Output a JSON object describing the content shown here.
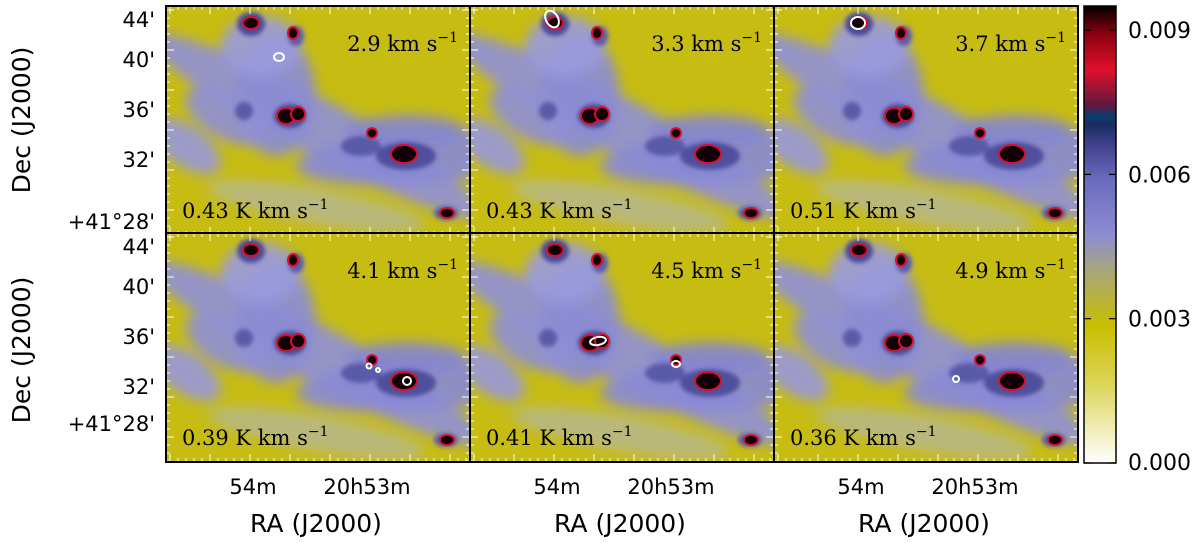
{
  "chart_data": {
    "type": "heatmap",
    "description_note": "",
    "panels": [
      {
        "velocity": "2.9",
        "velocity_unit": "km s",
        "velocity_exp": "−1",
        "level": "0.43",
        "level_unit": "K km s",
        "level_exp": "−1"
      },
      {
        "velocity": "3.3",
        "velocity_unit": "km s",
        "velocity_exp": "−1",
        "level": "0.43",
        "level_unit": "K km s",
        "level_exp": "−1"
      },
      {
        "velocity": "3.7",
        "velocity_unit": "km s",
        "velocity_exp": "−1",
        "level": "0.51",
        "level_unit": "K km s",
        "level_exp": "−1"
      },
      {
        "velocity": "4.1",
        "velocity_unit": "km s",
        "velocity_exp": "−1",
        "level": "0.39",
        "level_unit": "K km s",
        "level_exp": "−1"
      },
      {
        "velocity": "4.5",
        "velocity_unit": "km s",
        "velocity_exp": "−1",
        "level": "0.41",
        "level_unit": "K km s",
        "level_exp": "−1"
      },
      {
        "velocity": "4.9",
        "velocity_unit": "km s",
        "velocity_exp": "−1",
        "level": "0.36",
        "level_unit": "K km s",
        "level_exp": "−1"
      }
    ],
    "xlabel": "RA (J2000)",
    "ylabel": "Dec (J2000)",
    "xticks": [
      "54m",
      "20h53m"
    ],
    "yticks": [
      "44'",
      "40'",
      "36'",
      "32'",
      "+41°28'"
    ],
    "colorbar": {
      "ticks": [
        "0.009",
        "0.006",
        "0.003",
        "0.000"
      ],
      "range": [
        0.0,
        0.0095
      ],
      "tick_values": [
        0.009,
        0.006,
        0.003,
        0.0
      ],
      "colors": [
        "#ffffff",
        "#c8be00",
        "#8c8cd2",
        "#5a5aaa",
        "#1e2a60",
        "#c8102a",
        "#000000"
      ]
    }
  }
}
